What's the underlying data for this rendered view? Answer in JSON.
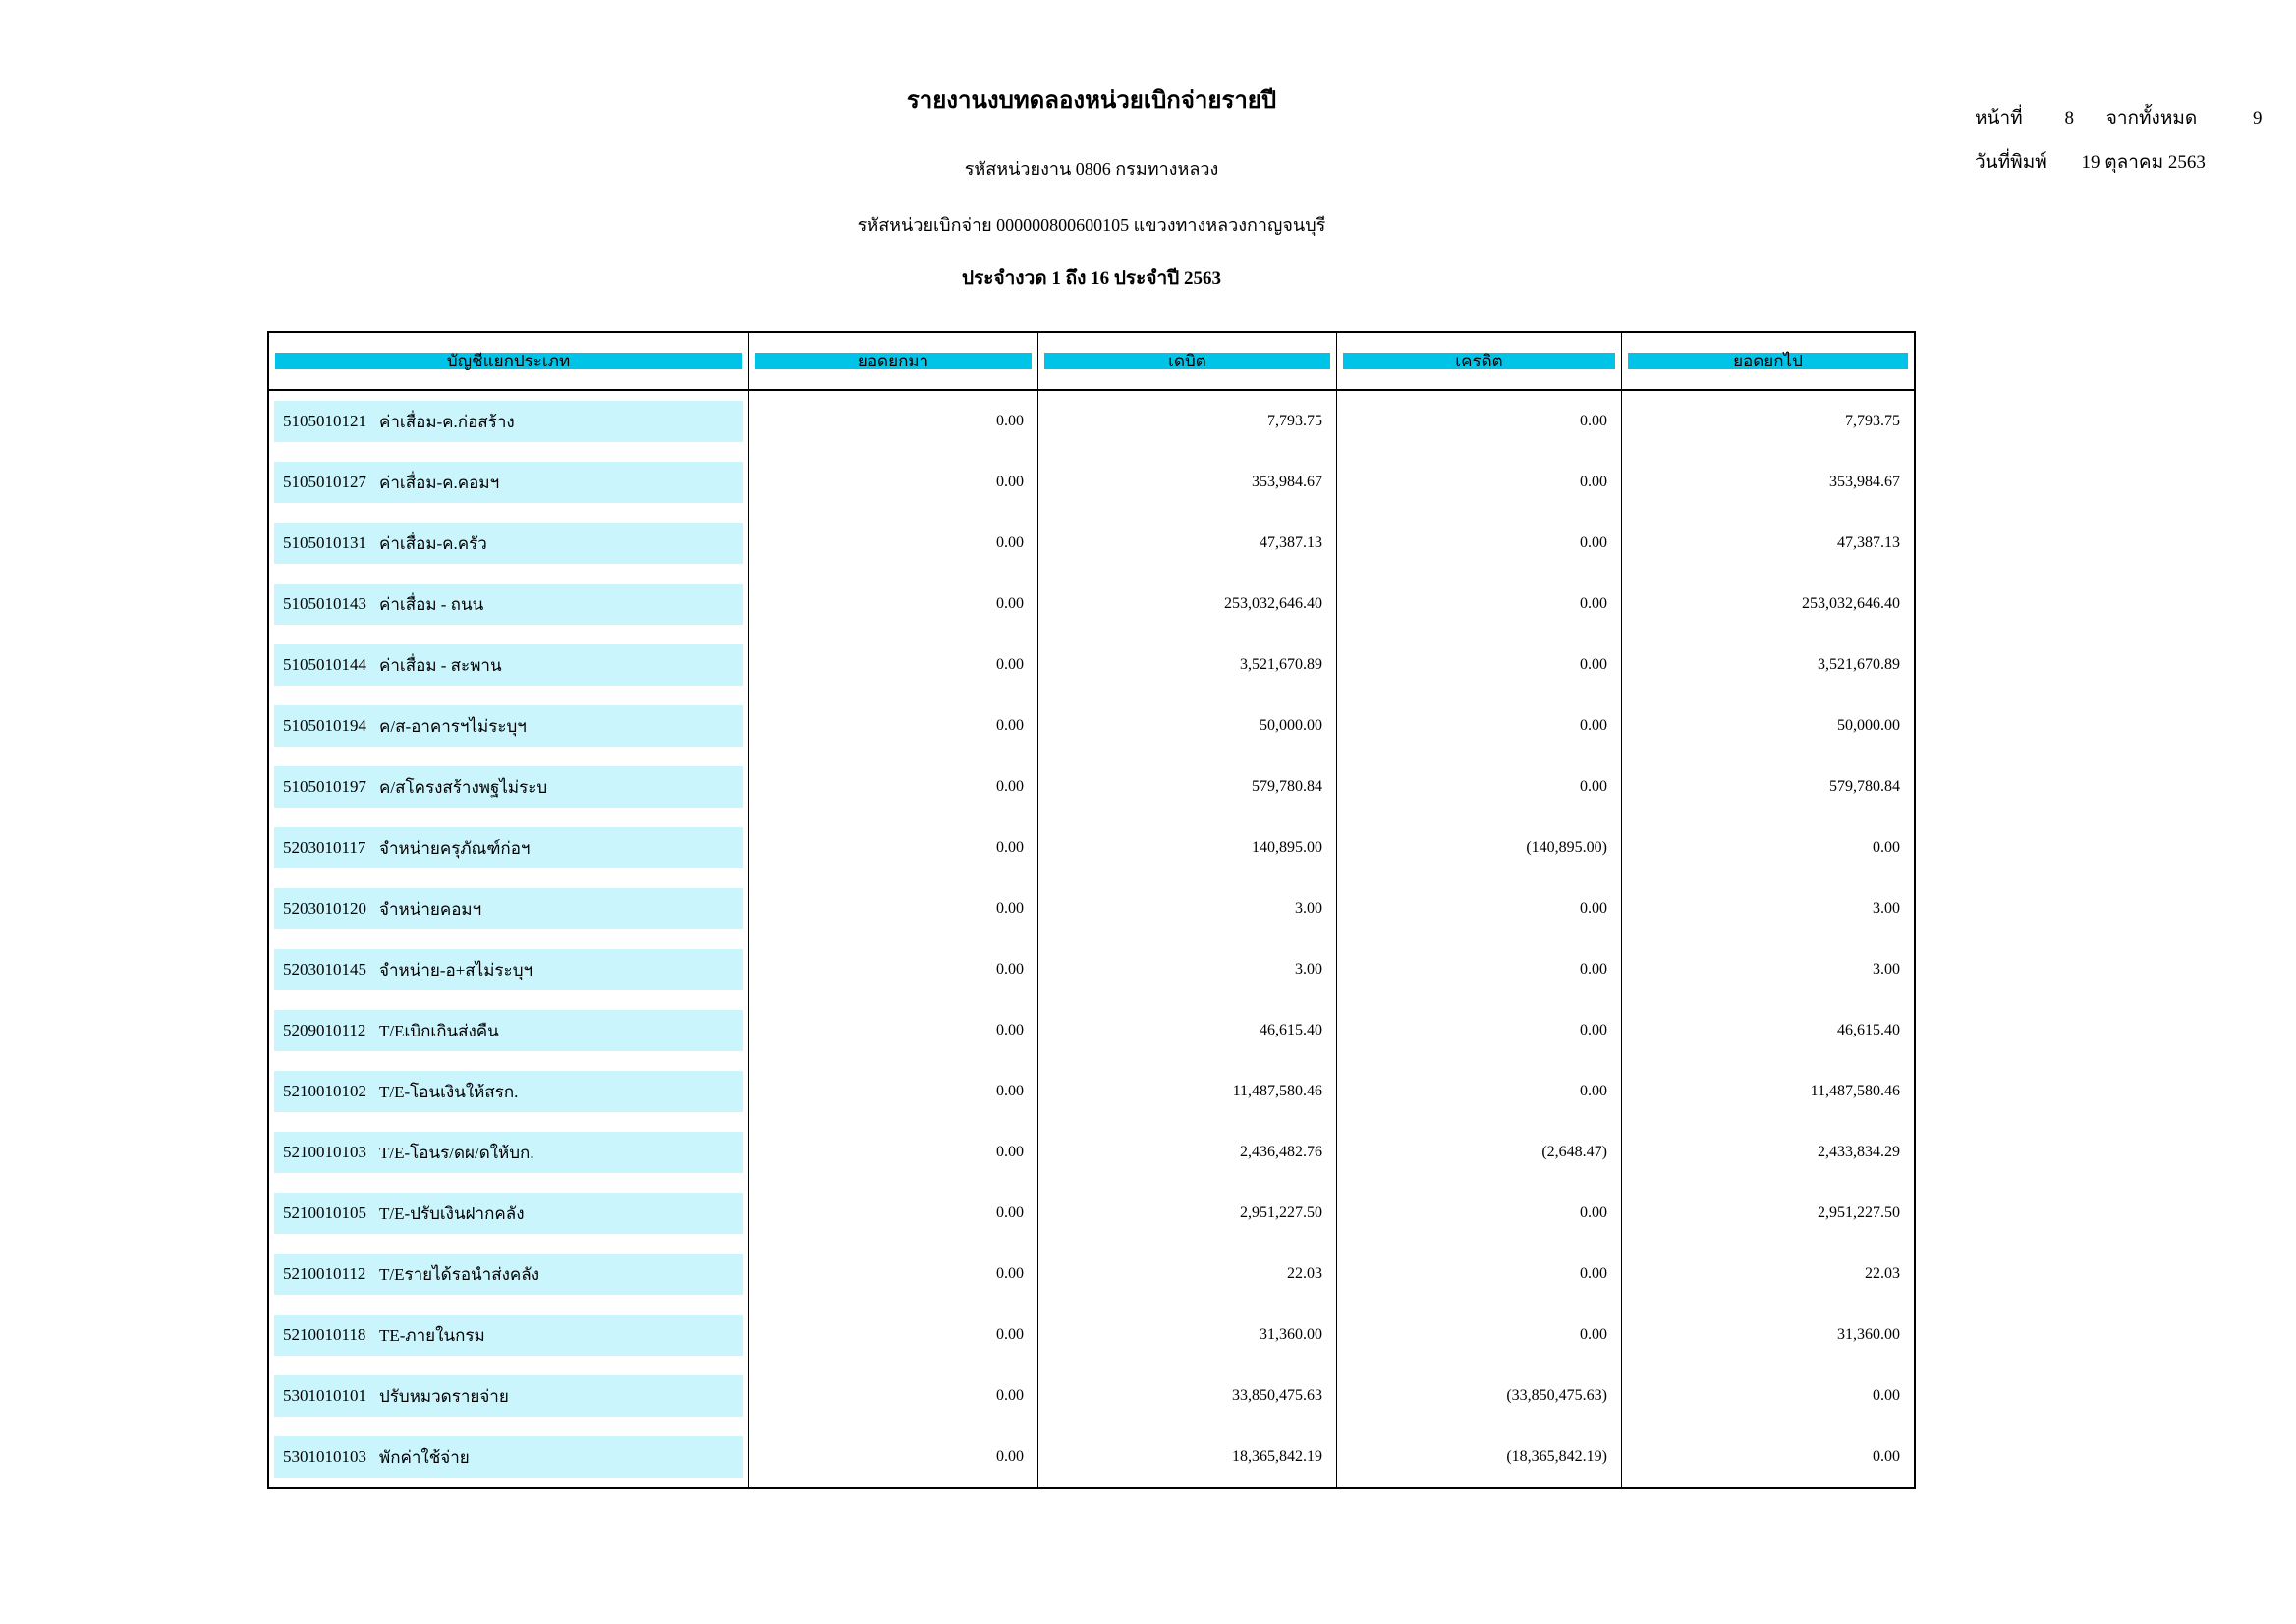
{
  "colors": {
    "header_bg": "#00C3E8",
    "row_highlight": "#CAF5FD"
  },
  "page_info": {
    "page_label": "หน้าที่",
    "page_number": "8",
    "total_label": "จากทั้งหมด",
    "total_pages": "9",
    "print_date_label": "วันที่พิมพ์",
    "print_date": "19 ตุลาคม 2563"
  },
  "header": {
    "title": "รายงานงบทดลองหน่วยเบิกจ่ายรายปี",
    "agency_line": "รหัสหน่วยงาน 0806 กรมทางหลวง",
    "unit_line": "รหัสหน่วยเบิกจ่าย 000000800600105 แขวงทางหลวงกาญจนบุรี",
    "period_line": "ประจำงวด 1 ถึง 16 ประจำปี 2563"
  },
  "table": {
    "columns": [
      "บัญชีแยกประเภท",
      "ยอดยกมา",
      "เดบิต",
      "เครดิต",
      "ยอดยกไป"
    ],
    "rows": [
      {
        "code": "5105010121",
        "name": "ค่าเสื่อม-ค.ก่อสร้าง",
        "bf": "0.00",
        "debit": "7,793.75",
        "credit": "0.00",
        "cf": "7,793.75"
      },
      {
        "code": "5105010127",
        "name": "ค่าเสื่อม-ค.คอมฯ",
        "bf": "0.00",
        "debit": "353,984.67",
        "credit": "0.00",
        "cf": "353,984.67"
      },
      {
        "code": "5105010131",
        "name": "ค่าเสื่อม-ค.ครัว",
        "bf": "0.00",
        "debit": "47,387.13",
        "credit": "0.00",
        "cf": "47,387.13"
      },
      {
        "code": "5105010143",
        "name": "ค่าเสื่อม - ถนน",
        "bf": "0.00",
        "debit": "253,032,646.40",
        "credit": "0.00",
        "cf": "253,032,646.40"
      },
      {
        "code": "5105010144",
        "name": "ค่าเสื่อม - สะพาน",
        "bf": "0.00",
        "debit": "3,521,670.89",
        "credit": "0.00",
        "cf": "3,521,670.89"
      },
      {
        "code": "5105010194",
        "name": "ค/ส-อาคารฯไม่ระบุฯ",
        "bf": "0.00",
        "debit": "50,000.00",
        "credit": "0.00",
        "cf": "50,000.00"
      },
      {
        "code": "5105010197",
        "name": "ค/สโครงสร้างพฐไม่ระบ",
        "bf": "0.00",
        "debit": "579,780.84",
        "credit": "0.00",
        "cf": "579,780.84"
      },
      {
        "code": "5203010117",
        "name": "จำหน่ายครุภัณฑ์ก่อฯ",
        "bf": "0.00",
        "debit": "140,895.00",
        "credit": "(140,895.00)",
        "cf": "0.00"
      },
      {
        "code": "5203010120",
        "name": "จำหน่ายคอมฯ",
        "bf": "0.00",
        "debit": "3.00",
        "credit": "0.00",
        "cf": "3.00"
      },
      {
        "code": "5203010145",
        "name": "จำหน่าย-อ+สไม่ระบุฯ",
        "bf": "0.00",
        "debit": "3.00",
        "credit": "0.00",
        "cf": "3.00"
      },
      {
        "code": "5209010112",
        "name": "T/Eเบิกเกินส่งคืน",
        "bf": "0.00",
        "debit": "46,615.40",
        "credit": "0.00",
        "cf": "46,615.40"
      },
      {
        "code": "5210010102",
        "name": "T/E-โอนเงินให้สรก.",
        "bf": "0.00",
        "debit": "11,487,580.46",
        "credit": "0.00",
        "cf": "11,487,580.46"
      },
      {
        "code": "5210010103",
        "name": "T/E-โอนร/ดผ/ดให้บก.",
        "bf": "0.00",
        "debit": "2,436,482.76",
        "credit": "(2,648.47)",
        "cf": "2,433,834.29"
      },
      {
        "code": "5210010105",
        "name": "T/E-ปรับเงินฝากคลัง",
        "bf": "0.00",
        "debit": "2,951,227.50",
        "credit": "0.00",
        "cf": "2,951,227.50"
      },
      {
        "code": "5210010112",
        "name": "T/Eรายได้รอนำส่งคลัง",
        "bf": "0.00",
        "debit": "22.03",
        "credit": "0.00",
        "cf": "22.03"
      },
      {
        "code": "5210010118",
        "name": "TE-ภายในกรม",
        "bf": "0.00",
        "debit": "31,360.00",
        "credit": "0.00",
        "cf": "31,360.00"
      },
      {
        "code": "5301010101",
        "name": "ปรับหมวดรายจ่าย",
        "bf": "0.00",
        "debit": "33,850,475.63",
        "credit": "(33,850,475.63)",
        "cf": "0.00"
      },
      {
        "code": "5301010103",
        "name": "พักค่าใช้จ่าย",
        "bf": "0.00",
        "debit": "18,365,842.19",
        "credit": "(18,365,842.19)",
        "cf": "0.00"
      }
    ]
  }
}
